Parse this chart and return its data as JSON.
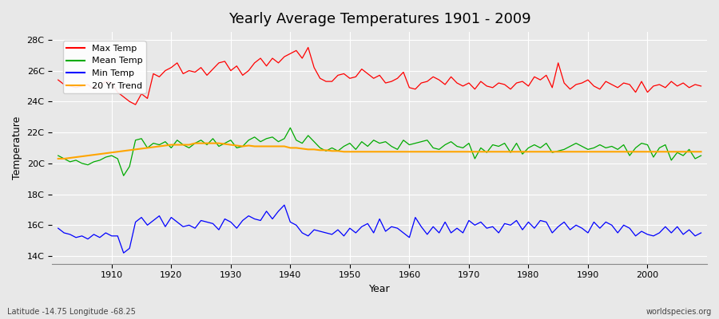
{
  "title": "Yearly Average Temperatures 1901 - 2009",
  "xlabel": "Year",
  "ylabel": "Temperature",
  "x_start": 1901,
  "x_end": 2009,
  "yticks": [
    14,
    16,
    18,
    20,
    22,
    24,
    26,
    28
  ],
  "ytick_labels": [
    "14C",
    "16C",
    "18C",
    "20C",
    "22C",
    "24C",
    "26C",
    "28C"
  ],
  "ylim": [
    13.5,
    28.5
  ],
  "xlim": [
    1900,
    2010
  ],
  "background_color": "#e8e8e8",
  "plot_bg_color": "#e8e8e8",
  "grid_color": "#ffffff",
  "colors": {
    "max": "#ff0000",
    "mean": "#00aa00",
    "min": "#0000ff",
    "trend": "#ffa500"
  },
  "legend_labels": [
    "Max Temp",
    "Mean Temp",
    "Min Temp",
    "20 Yr Trend"
  ],
  "footer_left": "Latitude -14.75 Longitude -68.25",
  "footer_right": "worldspecies.org",
  "max_temps": [
    25.4,
    25.1,
    25.0,
    24.9,
    25.0,
    25.1,
    24.8,
    25.0,
    25.3,
    25.2,
    24.6,
    24.3,
    24.0,
    23.8,
    24.5,
    24.2,
    25.8,
    25.6,
    26.0,
    26.2,
    26.5,
    25.8,
    26.0,
    25.9,
    26.2,
    25.7,
    26.1,
    26.5,
    26.6,
    26.0,
    26.3,
    25.7,
    26.0,
    26.5,
    26.8,
    26.3,
    26.8,
    26.5,
    26.9,
    27.1,
    27.3,
    26.8,
    27.5,
    26.2,
    25.5,
    25.3,
    25.3,
    25.7,
    25.8,
    25.5,
    25.6,
    26.1,
    25.8,
    25.5,
    25.7,
    25.2,
    25.3,
    25.5,
    25.9,
    24.9,
    24.8,
    25.2,
    25.3,
    25.6,
    25.4,
    25.1,
    25.6,
    25.2,
    25.0,
    25.2,
    24.8,
    25.3,
    25.0,
    24.9,
    25.2,
    25.1,
    24.8,
    25.2,
    25.3,
    25.0,
    25.6,
    25.4,
    25.7,
    24.9,
    26.5,
    25.2,
    24.8,
    25.1,
    25.2,
    25.4,
    25.0,
    24.8,
    25.3,
    25.1,
    24.9,
    25.2,
    25.1,
    24.6,
    25.3,
    24.6,
    25.0,
    25.1,
    24.9,
    25.3,
    25.0,
    25.2,
    24.9,
    25.1,
    25.0
  ],
  "mean_temps": [
    20.5,
    20.3,
    20.1,
    20.2,
    20.0,
    19.9,
    20.1,
    20.2,
    20.4,
    20.5,
    20.3,
    19.2,
    19.8,
    21.5,
    21.6,
    21.0,
    21.3,
    21.2,
    21.4,
    21.0,
    21.5,
    21.2,
    21.0,
    21.3,
    21.5,
    21.2,
    21.6,
    21.1,
    21.3,
    21.5,
    21.0,
    21.1,
    21.5,
    21.7,
    21.4,
    21.6,
    21.7,
    21.4,
    21.6,
    22.3,
    21.5,
    21.3,
    21.8,
    21.4,
    21.0,
    20.8,
    21.0,
    20.8,
    21.1,
    21.3,
    20.9,
    21.4,
    21.1,
    21.5,
    21.3,
    21.4,
    21.1,
    20.9,
    21.5,
    21.2,
    21.3,
    21.4,
    21.5,
    21.0,
    20.9,
    21.2,
    21.4,
    21.1,
    21.0,
    21.3,
    20.3,
    21.0,
    20.7,
    21.2,
    21.1,
    21.3,
    20.7,
    21.3,
    20.6,
    21.0,
    21.2,
    21.0,
    21.3,
    20.7,
    20.8,
    20.9,
    21.1,
    21.3,
    21.1,
    20.9,
    21.0,
    21.2,
    21.0,
    21.1,
    20.9,
    21.2,
    20.5,
    21.0,
    21.3,
    21.2,
    20.4,
    21.0,
    21.2,
    20.2,
    20.7,
    20.5,
    20.9,
    20.3,
    20.5
  ],
  "min_temps": [
    15.8,
    15.5,
    15.4,
    15.2,
    15.3,
    15.1,
    15.4,
    15.2,
    15.5,
    15.3,
    15.3,
    14.2,
    14.5,
    16.2,
    16.5,
    16.0,
    16.3,
    16.6,
    15.9,
    16.5,
    16.2,
    15.9,
    16.0,
    15.8,
    16.3,
    16.2,
    16.1,
    15.7,
    16.4,
    16.2,
    15.8,
    16.3,
    16.6,
    16.4,
    16.3,
    16.9,
    16.4,
    16.9,
    17.3,
    16.2,
    16.0,
    15.5,
    15.3,
    15.7,
    15.6,
    15.5,
    15.4,
    15.7,
    15.3,
    15.8,
    15.5,
    15.9,
    16.1,
    15.5,
    16.4,
    15.6,
    15.9,
    15.8,
    15.5,
    15.2,
    16.5,
    15.9,
    15.4,
    15.9,
    15.5,
    16.2,
    15.5,
    15.8,
    15.5,
    16.3,
    16.0,
    16.2,
    15.8,
    15.9,
    15.5,
    16.1,
    16.0,
    16.3,
    15.7,
    16.2,
    15.8,
    16.3,
    16.2,
    15.5,
    15.9,
    16.2,
    15.7,
    16.0,
    15.8,
    15.5,
    16.2,
    15.8,
    16.2,
    16.0,
    15.5,
    16.0,
    15.8,
    15.3,
    15.6,
    15.4,
    15.3,
    15.5,
    15.9,
    15.5,
    15.9,
    15.4,
    15.7,
    15.3,
    15.5
  ],
  "trend_temps": [
    20.3,
    20.3,
    20.35,
    20.4,
    20.45,
    20.5,
    20.55,
    20.6,
    20.65,
    20.7,
    20.75,
    20.8,
    20.85,
    20.9,
    20.95,
    21.0,
    21.05,
    21.1,
    21.15,
    21.2,
    21.2,
    21.2,
    21.2,
    21.3,
    21.3,
    21.3,
    21.3,
    21.3,
    21.25,
    21.2,
    21.15,
    21.1,
    21.15,
    21.1,
    21.1,
    21.1,
    21.1,
    21.1,
    21.1,
    21.0,
    21.0,
    20.95,
    20.9,
    20.9,
    20.85,
    20.85,
    20.8,
    20.8,
    20.75,
    20.75,
    20.75,
    20.75,
    20.75,
    20.75,
    20.75,
    20.75,
    20.75,
    20.75,
    20.75,
    20.75,
    20.75,
    20.75,
    20.75,
    20.75,
    20.75,
    20.75,
    20.75,
    20.75,
    20.75,
    20.75,
    20.75,
    20.75,
    20.75,
    20.75,
    20.75,
    20.75,
    20.75,
    20.75,
    20.75,
    20.75,
    20.75,
    20.75,
    20.75,
    20.75,
    20.75,
    20.75,
    20.75,
    20.75,
    20.75,
    20.75,
    20.75,
    20.75,
    20.75,
    20.75,
    20.75,
    20.75,
    20.75,
    20.75,
    20.75,
    20.75,
    20.75,
    20.75,
    20.75,
    20.75,
    20.75,
    20.75,
    20.75,
    20.75,
    20.75
  ]
}
